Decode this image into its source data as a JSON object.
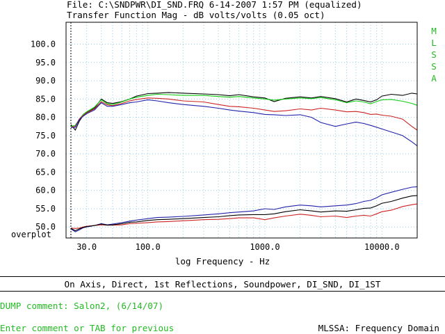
{
  "header": {
    "file_line": "File: C:\\SNDPWR\\DI_SND.FRQ 6-14-2007 1:57 PM (equalized)",
    "measurement_line": "Transfer Function Mag - dB volts/volts (0.05 oct)"
  },
  "side_label": [
    "M",
    "L",
    "S",
    "S",
    "A"
  ],
  "chart_data": {
    "type": "line",
    "title": "Transfer Function Mag - dB volts/volts (0.05 oct)",
    "xlabel": "log Frequency - Hz",
    "ylabel": "",
    "x_scale": "log",
    "xlim": [
      20,
      20000
    ],
    "ylim": [
      47,
      106
    ],
    "x_ticks": [
      30,
      100,
      1000,
      10000
    ],
    "x_tick_labels": [
      "30.0",
      "100.0",
      "1000.0",
      "10000.0"
    ],
    "y_ticks": [
      100,
      95,
      90,
      85,
      80,
      75,
      70,
      65,
      60,
      55,
      50
    ],
    "y_tick_labels": [
      "100.0",
      "95.0",
      "90.0",
      "85.0",
      "80.0",
      "75.0",
      "70.0",
      "65.0",
      "60.0",
      "55.0",
      "50.0"
    ],
    "bottom_label": "overplot",
    "grid": true,
    "marker_line_x": 22,
    "colors": {
      "grid": "#8fcfe8",
      "black": "#000000",
      "green": "#11cc11",
      "red": "#cc2222",
      "blue": "#2222aa"
    },
    "series": [
      {
        "color": "black",
        "x": [
          22,
          24,
          26,
          28,
          30,
          35,
          40,
          45,
          50,
          60,
          70,
          80,
          100,
          120,
          150,
          200,
          300,
          400,
          500,
          600,
          800,
          1000,
          1200,
          1500,
          2000,
          2500,
          3000,
          4000,
          5000,
          6000,
          7000,
          8000,
          9000,
          10000,
          12000,
          15000,
          18000,
          20000
        ],
        "y": [
          78,
          76.5,
          79,
          80.5,
          81.3,
          82.5,
          85,
          84,
          83.8,
          84.3,
          85,
          85.8,
          86.5,
          86.6,
          86.8,
          86.6,
          86.4,
          86.2,
          85.9,
          86.2,
          85.6,
          85.3,
          84.3,
          85.2,
          85.6,
          85.3,
          85.7,
          85.1,
          84.2,
          85.0,
          84.6,
          84.2,
          84.8,
          85.8,
          86.3,
          86.0,
          86.6,
          86.4
        ]
      },
      {
        "color": "green",
        "x": [
          22,
          24,
          26,
          28,
          30,
          35,
          40,
          45,
          50,
          60,
          70,
          80,
          100,
          120,
          150,
          200,
          300,
          400,
          500,
          600,
          800,
          1000,
          1200,
          1500,
          2000,
          2500,
          3000,
          4000,
          5000,
          6000,
          7000,
          8000,
          9000,
          10000,
          12000,
          15000,
          18000,
          20000
        ],
        "y": [
          77.5,
          77.8,
          79.5,
          80.8,
          81.5,
          82.8,
          84.8,
          83.7,
          83.5,
          84.2,
          85,
          85.5,
          86,
          86.3,
          86.2,
          86,
          86,
          85.7,
          85.5,
          85.7,
          85.3,
          85.0,
          84.7,
          85.0,
          85.3,
          85.1,
          85.4,
          84.8,
          84.0,
          84.5,
          84.2,
          83.7,
          84.3,
          84.8,
          84.9,
          84.4,
          83.8,
          83.3
        ]
      },
      {
        "color": "red",
        "x": [
          22,
          24,
          26,
          28,
          30,
          35,
          40,
          45,
          50,
          60,
          70,
          80,
          100,
          120,
          150,
          200,
          300,
          400,
          500,
          600,
          800,
          1000,
          1200,
          1500,
          2000,
          2500,
          3000,
          4000,
          5000,
          6000,
          7000,
          8000,
          9000,
          10000,
          12000,
          15000,
          18000,
          20000
        ],
        "y": [
          77.3,
          77.5,
          79.6,
          80.5,
          81.2,
          82.3,
          84.3,
          83.4,
          83.2,
          83.8,
          84.5,
          84.9,
          85.3,
          85.2,
          85.0,
          84.5,
          84.2,
          83.5,
          83.0,
          82.9,
          82.5,
          82.0,
          81.6,
          81.8,
          82.3,
          82.0,
          82.5,
          82.0,
          81.5,
          81.6,
          81.3,
          80.8,
          80.9,
          80.6,
          80.3,
          79.5,
          77.5,
          76.5
        ]
      },
      {
        "color": "blue",
        "x": [
          22,
          24,
          26,
          28,
          30,
          35,
          40,
          45,
          50,
          60,
          70,
          80,
          100,
          120,
          150,
          200,
          300,
          400,
          500,
          600,
          800,
          1000,
          1200,
          1500,
          2000,
          2500,
          3000,
          4000,
          5000,
          6000,
          7000,
          8000,
          9000,
          10000,
          12000,
          15000,
          18000,
          20000
        ],
        "y": [
          77.2,
          77.3,
          79.4,
          80.3,
          81.0,
          82.0,
          84.0,
          83.0,
          83.0,
          83.5,
          84.0,
          84.2,
          84.8,
          84.5,
          84.0,
          83.5,
          83.0,
          82.5,
          82.0,
          81.7,
          81.3,
          80.8,
          80.7,
          80.5,
          80.7,
          80.0,
          78.6,
          77.5,
          78.2,
          78.7,
          78.3,
          77.8,
          77.3,
          76.8,
          76.0,
          75.0,
          73.3,
          72.2
        ]
      },
      {
        "color": "blue",
        "x": [
          22,
          24,
          26,
          28,
          30,
          35,
          40,
          45,
          50,
          60,
          70,
          80,
          100,
          120,
          150,
          200,
          300,
          400,
          500,
          600,
          800,
          1000,
          1200,
          1500,
          2000,
          2500,
          3000,
          4000,
          5000,
          6000,
          7000,
          8000,
          9000,
          10000,
          12000,
          15000,
          18000,
          20000
        ],
        "y": [
          49.5,
          48.7,
          49.2,
          49.8,
          50.0,
          50.4,
          50.9,
          50.6,
          50.8,
          51.2,
          51.6,
          51.9,
          52.3,
          52.6,
          52.7,
          52.9,
          53.3,
          53.6,
          53.9,
          54.1,
          54.4,
          55.0,
          54.8,
          55.5,
          56.0,
          55.8,
          55.5,
          55.8,
          56.0,
          56.4,
          57.0,
          57.3,
          58.0,
          58.8,
          59.5,
          60.3,
          60.9,
          61.0
        ]
      },
      {
        "color": "red",
        "x": [
          22,
          24,
          26,
          28,
          30,
          35,
          40,
          45,
          50,
          60,
          70,
          80,
          100,
          120,
          150,
          200,
          300,
          400,
          500,
          600,
          800,
          1000,
          1200,
          1500,
          2000,
          2500,
          3000,
          4000,
          5000,
          6000,
          7000,
          8000,
          9000,
          10000,
          12000,
          15000,
          18000,
          20000
        ],
        "y": [
          49.7,
          49.6,
          49.7,
          50.0,
          50.2,
          50.4,
          50.6,
          50.5,
          50.5,
          50.6,
          50.9,
          51.0,
          51.2,
          51.4,
          51.5,
          51.7,
          52.0,
          52.1,
          52.3,
          52.5,
          52.5,
          52.0,
          52.5,
          53.0,
          53.5,
          53.2,
          52.8,
          53.0,
          52.6,
          53.0,
          53.2,
          53.0,
          53.6,
          54.2,
          54.6,
          55.6,
          56.1,
          56.3
        ]
      },
      {
        "color": "black",
        "x": [
          22,
          24,
          26,
          28,
          30,
          35,
          40,
          45,
          50,
          60,
          70,
          80,
          100,
          120,
          150,
          200,
          300,
          400,
          500,
          600,
          800,
          1000,
          1200,
          1500,
          2000,
          2500,
          3000,
          4000,
          5000,
          6000,
          7000,
          8000,
          9000,
          10000,
          12000,
          15000,
          18000,
          20000
        ],
        "y": [
          49.6,
          49.0,
          49.5,
          49.9,
          50.1,
          50.4,
          50.8,
          50.5,
          50.6,
          50.9,
          51.3,
          51.4,
          51.8,
          52.0,
          52.1,
          52.3,
          52.6,
          52.8,
          53.1,
          53.3,
          53.4,
          53.4,
          53.6,
          54.2,
          54.7,
          54.4,
          54.1,
          54.4,
          54.3,
          54.7,
          55.1,
          55.2,
          55.8,
          56.5,
          57.0,
          57.9,
          58.5,
          58.6
        ]
      }
    ]
  },
  "legend_text": "On Axis, Direct, 1st Reflections, Soundpower, DI_SND, DI_1ST",
  "footer": {
    "dump_comment": "DUMP comment: Salon2, (6/14/07)",
    "prompt": "Enter comment or TAB for previous",
    "mode": "MLSSA: Frequency Domain"
  }
}
